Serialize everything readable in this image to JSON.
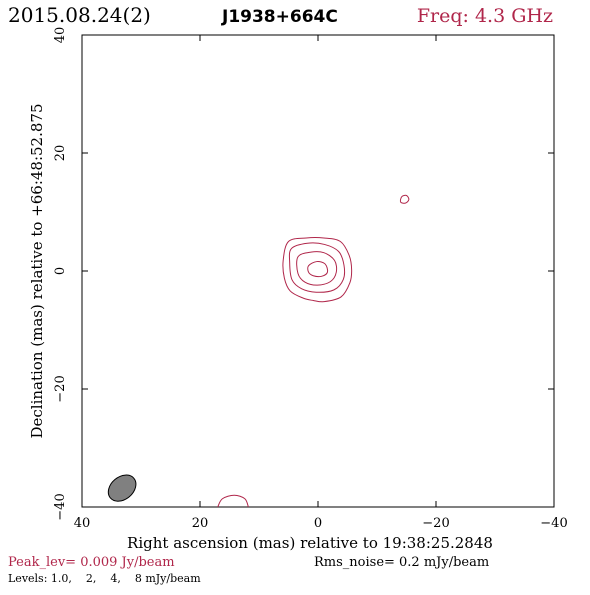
{
  "header": {
    "date": "2015.08.24(2)",
    "source": "J1938+664C",
    "freq": "Freq: 4.3 GHz"
  },
  "footer": {
    "peak": "Peak_lev=  0.009 Jy/beam",
    "rms": "Rms_noise=  0.2 mJy/beam",
    "levels": "Levels: 1.0,    2,    4,    8 mJy/beam"
  },
  "colors": {
    "accent": "#b0264a",
    "contour": "#b0264a",
    "beam_fill": "#808080",
    "text": "#000000"
  },
  "chart_data": {
    "type": "contour",
    "xlabel": "Right ascension (mas) relative to 19:38:25.2848",
    "ylabel": "Declination (mas) relative to +66:48:52.875",
    "xlim": [
      40,
      -40
    ],
    "ylim": [
      -40,
      40
    ],
    "x_ticks": [
      40,
      20,
      0,
      -20,
      -40
    ],
    "y_ticks": [
      -40,
      -20,
      0,
      20,
      40
    ],
    "x_tick_labels": [
      "40",
      "20",
      "0",
      "−20",
      "−40"
    ],
    "y_tick_labels": [
      "−40",
      "−20",
      "0",
      "20",
      "40"
    ],
    "contour_levels_mJy_per_beam": [
      1.0,
      2,
      4,
      8
    ],
    "peak_Jy_per_beam": 0.009,
    "rms_noise_mJy_per_beam": 0.2,
    "contours": [
      {
        "level": 1.0,
        "points": [
          [
            5.0,
            5.0
          ],
          [
            2.0,
            5.6
          ],
          [
            -1.0,
            5.6
          ],
          [
            -3.8,
            5.0
          ],
          [
            -5.3,
            2.6
          ],
          [
            -5.7,
            0.2
          ],
          [
            -5.4,
            -2.0
          ],
          [
            -3.9,
            -4.4
          ],
          [
            -1.0,
            -5.2
          ],
          [
            0.8,
            -5.0
          ],
          [
            2.5,
            -4.6
          ],
          [
            4.7,
            -3.4
          ],
          [
            5.7,
            -1.2
          ],
          [
            5.9,
            1.8
          ]
        ]
      },
      {
        "level": 2,
        "points": [
          [
            4.5,
            3.8
          ],
          [
            1.8,
            4.7
          ],
          [
            -1.1,
            4.5
          ],
          [
            -3.5,
            3.3
          ],
          [
            -4.4,
            1.0
          ],
          [
            -4.3,
            -1.4
          ],
          [
            -2.7,
            -3.2
          ],
          [
            0.3,
            -3.6
          ],
          [
            2.8,
            -3.0
          ],
          [
            4.4,
            -1.5
          ],
          [
            4.8,
            1.4
          ]
        ]
      },
      {
        "level": 4,
        "points": [
          [
            3.4,
            2.4
          ],
          [
            1.2,
            3.2
          ],
          [
            -1.0,
            3.1
          ],
          [
            -2.8,
            1.8
          ],
          [
            -3.1,
            -0.2
          ],
          [
            -2.1,
            -1.8
          ],
          [
            0.1,
            -2.4
          ],
          [
            2.2,
            -1.9
          ],
          [
            3.4,
            -0.4
          ]
        ]
      },
      {
        "level": 8,
        "points": [
          [
            1.6,
            0.9
          ],
          [
            0.2,
            1.6
          ],
          [
            -1.2,
            1.2
          ],
          [
            -1.6,
            -0.2
          ],
          [
            -0.6,
            -0.9
          ],
          [
            0.8,
            -0.8
          ],
          [
            1.6,
            -0.2
          ]
        ]
      },
      {
        "level": 1.0,
        "points": [
          [
            -14.2,
            12.6
          ],
          [
            -15.0,
            12.8
          ],
          [
            -15.4,
            12.1
          ],
          [
            -14.8,
            11.5
          ],
          [
            -14.0,
            11.7
          ]
        ]
      },
      {
        "level": 1.0,
        "points": [
          [
            17.0,
            -40.0
          ],
          [
            16.2,
            -38.6
          ],
          [
            14.2,
            -38.0
          ],
          [
            12.4,
            -38.6
          ],
          [
            11.8,
            -40.0
          ]
        ]
      }
    ],
    "beam": {
      "center": [
        33.2,
        -36.8
      ],
      "major_mas": 5.2,
      "minor_mas": 3.8,
      "pa_deg": -50
    }
  }
}
